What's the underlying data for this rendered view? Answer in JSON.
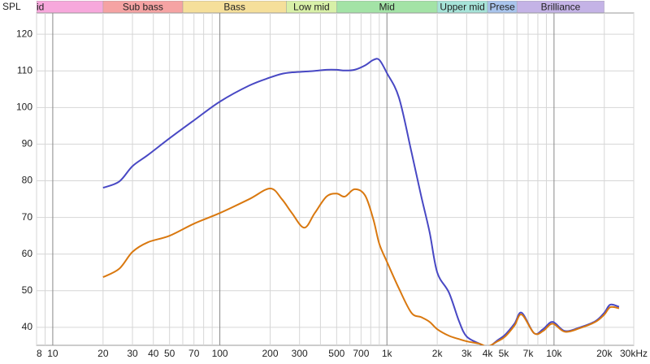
{
  "chart_data": {
    "type": "line",
    "y_axis_label": "SPL",
    "x_scale": "log",
    "grid": true,
    "xlim": [
      8,
      30000
    ],
    "ylim": [
      35.1,
      125.8
    ],
    "yticks": [
      40,
      50,
      60,
      70,
      80,
      90,
      100,
      110,
      120
    ],
    "xticks": [
      8,
      10,
      20,
      30,
      40,
      50,
      70,
      100,
      200,
      300,
      500,
      700,
      {
        "value": 1000,
        "label": "1k"
      },
      {
        "value": 2000,
        "label": "2k"
      },
      {
        "value": 3000,
        "label": "3k"
      },
      {
        "value": 4000,
        "label": "4k"
      },
      {
        "value": 5000,
        "label": "5k"
      },
      {
        "value": 7000,
        "label": "7k"
      },
      {
        "value": 10000,
        "label": "10k"
      },
      {
        "value": 20000,
        "label": "20k"
      },
      {
        "value": 30000,
        "label": "30kHz"
      }
    ],
    "x_minor_grid": [
      9,
      60,
      80,
      90,
      400,
      600,
      800,
      900,
      6000,
      8000,
      9000
    ],
    "bands": [
      {
        "label": "id",
        "start": 8,
        "end": 20,
        "color": "#f7a8dc"
      },
      {
        "label": "Sub bass",
        "start": 20,
        "end": 60,
        "color": "#f5a3a3"
      },
      {
        "label": "Bass",
        "start": 60,
        "end": 250,
        "color": "#f5df9a"
      },
      {
        "label": "Low mid",
        "start": 250,
        "end": 500,
        "color": "#d8f0a8"
      },
      {
        "label": "Mid",
        "start": 500,
        "end": 2000,
        "color": "#a3e3a6"
      },
      {
        "label": "Upper mid",
        "start": 2000,
        "end": 4000,
        "color": "#a6e3d8"
      },
      {
        "label": "Prese",
        "start": 4000,
        "end": 6000,
        "color": "#a9c4ec"
      },
      {
        "label": "Brilliance",
        "start": 6000,
        "end": 20000,
        "color": "#c4b3e6"
      }
    ],
    "x": [
      20,
      25,
      30,
      37,
      50,
      70,
      100,
      150,
      200,
      235,
      270,
      320,
      370,
      435,
      500,
      560,
      640,
      740,
      830,
      900,
      1000,
      1180,
      1400,
      1600,
      1800,
      2000,
      2350,
      2700,
      3000,
      3600,
      4000,
      4600,
      5100,
      5800,
      6400,
      7600,
      8600,
      9800,
      11600,
      14300,
      17700,
      20000,
      21700,
      24500
    ],
    "series": [
      {
        "color": "#4848c4",
        "values": [
          78.1,
          79.8,
          84,
          87,
          91.6,
          96.5,
          101.6,
          106,
          108.2,
          109.2,
          109.6,
          109.8,
          110,
          110.3,
          110.3,
          110.1,
          110.3,
          111.5,
          113,
          113,
          109.4,
          102.7,
          88,
          76,
          66,
          55,
          49.5,
          41.7,
          37.5,
          35.5,
          34.5,
          36.5,
          38,
          41,
          44,
          38.4,
          39.5,
          41.5,
          39,
          40,
          41.7,
          44,
          46.2,
          45.6
        ]
      },
      {
        "color": "#d9780f",
        "values": [
          53.7,
          56,
          60.6,
          63.2,
          65,
          68.3,
          71.2,
          75,
          77.9,
          75,
          71.2,
          67.2,
          71.2,
          75.7,
          76.5,
          75.7,
          77.7,
          76,
          69.4,
          62.8,
          57.9,
          50.6,
          44,
          42.8,
          41.5,
          39.5,
          37.7,
          36.8,
          36.2,
          35.5,
          34.8,
          36.2,
          37.5,
          40.5,
          43.5,
          38.4,
          39,
          41,
          38.8,
          39.8,
          41.5,
          43.5,
          45.5,
          45.2
        ]
      }
    ]
  }
}
